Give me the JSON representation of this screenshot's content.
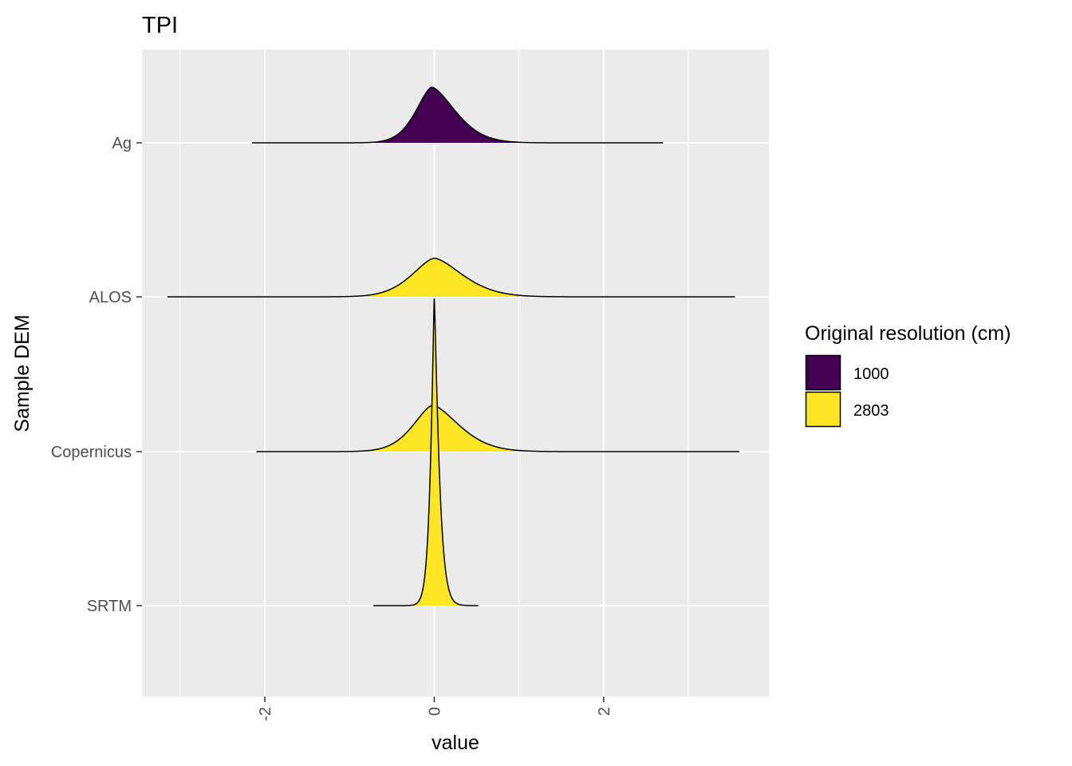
{
  "chart_data": {
    "type": "ridgeline",
    "title": "TPI",
    "xlabel": "value",
    "ylabel": "Sample DEM",
    "xlim": [
      -3.45,
      3.95
    ],
    "x_ticks": [
      -2,
      0,
      2
    ],
    "x_tick_labels": [
      "-2",
      "0",
      "2"
    ],
    "x_minor_ticks": [
      -3,
      -1,
      1,
      3
    ],
    "categories": [
      "Ag",
      "ALOS",
      "Copernicus",
      "SRTM"
    ],
    "grid": true,
    "legend": {
      "title": "Original resolution (cm)",
      "position": "right",
      "entries": [
        {
          "label": "1000",
          "color": "#440154"
        },
        {
          "label": "2803",
          "color": "#FDE725"
        }
      ]
    },
    "series": [
      {
        "category": "Ag",
        "resolution": "1000",
        "color": "#440154",
        "min": -2.15,
        "max": 2.7,
        "mode": -0.03,
        "peak_density": 0.36,
        "scale_left": 0.27,
        "scale_right": 0.4,
        "shape": 1.6
      },
      {
        "category": "ALOS",
        "resolution": "2803",
        "color": "#FDE725",
        "min": -3.15,
        "max": 3.55,
        "mode": 0.0,
        "peak_density": 0.25,
        "scale_left": 0.38,
        "scale_right": 0.48,
        "shape": 1.6
      },
      {
        "category": "Copernicus",
        "resolution": "2803",
        "color": "#FDE725",
        "min": -2.1,
        "max": 3.6,
        "mode": -0.02,
        "peak_density": 0.3,
        "scale_left": 0.33,
        "scale_right": 0.45,
        "shape": 1.6
      },
      {
        "category": "SRTM",
        "resolution": "2803",
        "color": "#FDE725",
        "min": -0.72,
        "max": 0.52,
        "mode": 0.0,
        "peak_density": 2.0,
        "scale_left": 0.055,
        "scale_right": 0.07,
        "shape": 1.2
      }
    ],
    "ridge_scale": 0.1
  }
}
